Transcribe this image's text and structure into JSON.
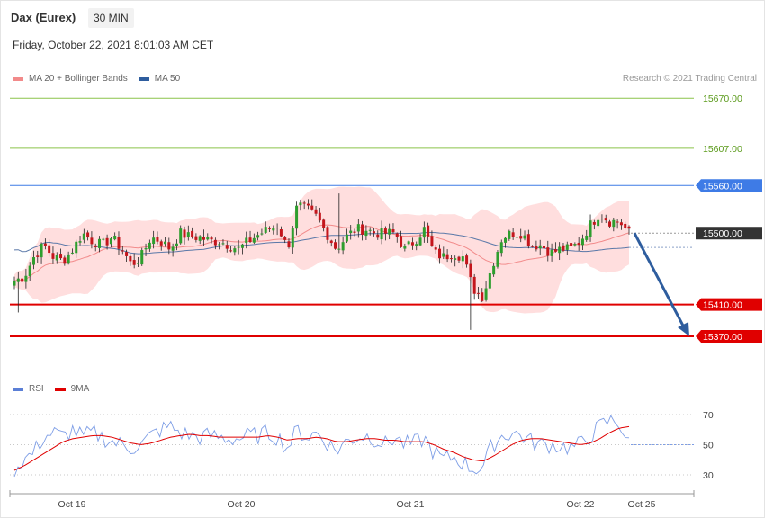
{
  "header": {
    "instrument": "Dax (Eurex)",
    "timeframe": "30 MIN",
    "datetime": "Friday, October 22, 2021 8:01:03 AM CET"
  },
  "credit": "Research © 2021 Trading Central",
  "legend_price": [
    {
      "label": "MA 20 + Bollinger Bands",
      "color": "#f28a8a"
    },
    {
      "label": "MA 50",
      "color": "#2e5d9e"
    }
  ],
  "legend_rsi": [
    {
      "label": "RSI",
      "color": "#5b7fd6"
    },
    {
      "label": "9MA",
      "color": "#e00000"
    }
  ],
  "colors": {
    "bull": "#2e9e2e",
    "bear": "#c4161c",
    "band_fill": "#ffdede",
    "ma20": "#f28a8a",
    "ma50": "#5a78a8",
    "target_green": "#8bc34a",
    "pivot_blue": "#3e7be6",
    "support_red": "#e00000",
    "arrow": "#2e5d9e",
    "rsi": "#7e9ee6",
    "rsi_ma": "#e00000"
  },
  "chart_data": [
    {
      "type": "candlestick",
      "title": "Dax (Eurex) 30 MIN",
      "ylim": [
        15345,
        15685
      ],
      "x_ticks": [
        "Oct 19",
        "Oct 20",
        "Oct 21",
        "Oct 22",
        "Oct 25"
      ],
      "current_price": 15500,
      "levels": [
        {
          "value": 15670,
          "label": "15670.00",
          "kind": "target"
        },
        {
          "value": 15607,
          "label": "15607.00",
          "kind": "target"
        },
        {
          "value": 15560,
          "label": "15560.00",
          "kind": "pivot"
        },
        {
          "value": 15500,
          "label": "15500.00",
          "kind": "last"
        },
        {
          "value": 15410,
          "label": "15410.00",
          "kind": "support"
        },
        {
          "value": 15370,
          "label": "15370.00",
          "kind": "support"
        }
      ],
      "forecast": {
        "from": 15500,
        "to": 15370
      },
      "close_anchors": [
        15440,
        15445,
        15470,
        15485,
        15470,
        15465,
        15480,
        15500,
        15490,
        15485,
        15495,
        15480,
        15460,
        15470,
        15495,
        15490,
        15480,
        15500,
        15495,
        15495,
        15490,
        15490,
        15485,
        15480,
        15490,
        15498,
        15505,
        15510,
        15480,
        15535,
        15530,
        15520,
        15500,
        15480,
        15495,
        15505,
        15505,
        15500,
        15500,
        15500,
        15480,
        15490,
        15505,
        15475,
        15470,
        15475,
        15470,
        15430,
        15420,
        15460,
        15495,
        15500,
        15500,
        15485,
        15485,
        15475,
        15480,
        15480,
        15490,
        15510,
        15525,
        15515,
        15515,
        15500
      ],
      "overlays": [
        "MA 20 + Bollinger Bands",
        "MA 50"
      ]
    },
    {
      "type": "line",
      "title": "RSI",
      "ylim": [
        22,
        78
      ],
      "y_ticks": [
        70,
        50,
        30
      ],
      "series": [
        {
          "name": "RSI",
          "values": [
            34,
            40,
            45,
            55,
            58,
            55,
            60,
            55,
            58,
            55,
            52,
            50,
            48,
            50,
            56,
            60,
            62,
            58,
            56,
            55,
            56,
            55,
            54,
            54,
            56,
            56,
            58,
            55,
            48,
            60,
            55,
            58,
            52,
            46,
            52,
            55,
            56,
            54,
            50,
            55,
            50,
            51,
            54,
            45,
            40,
            42,
            38,
            34,
            35,
            50,
            56,
            58,
            56,
            52,
            50,
            50,
            49,
            48,
            50,
            56,
            62,
            66,
            65,
            50
          ]
        },
        {
          "name": "9MA",
          "values": [
            33,
            36,
            40,
            44,
            48,
            52,
            54,
            55,
            56,
            56,
            55,
            53,
            51,
            50,
            51,
            53,
            55,
            56,
            57,
            56,
            56,
            55,
            55,
            55,
            55,
            55,
            56,
            55,
            53,
            54,
            54,
            55,
            54,
            52,
            52,
            53,
            54,
            54,
            53,
            53,
            52,
            52,
            52,
            50,
            47,
            45,
            42,
            40,
            39,
            42,
            46,
            50,
            53,
            54,
            54,
            53,
            52,
            51,
            50,
            51,
            54,
            58,
            61,
            62
          ]
        }
      ],
      "marks": {
        "current": 50
      }
    }
  ]
}
